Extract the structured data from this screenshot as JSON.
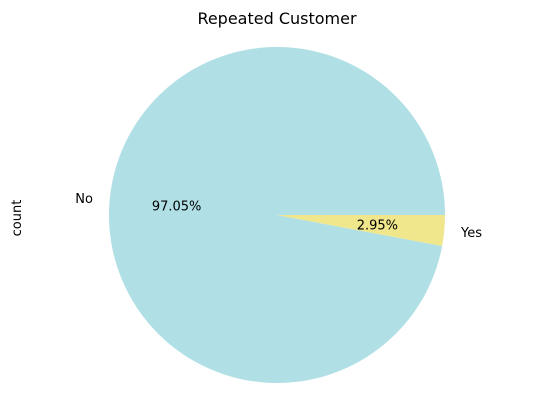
{
  "chart_data": {
    "type": "pie",
    "title": "Repeated Customer",
    "ylabel": "count",
    "slices": [
      {
        "label": "No",
        "value": 97.05,
        "pct_text": "97.05%",
        "color": "#b0e0e6"
      },
      {
        "label": "Yes",
        "value": 2.95,
        "pct_text": "2.95%",
        "color": "#f0e68c"
      }
    ],
    "start_angle": 0,
    "direction": "counterclockwise",
    "legend": "none"
  }
}
